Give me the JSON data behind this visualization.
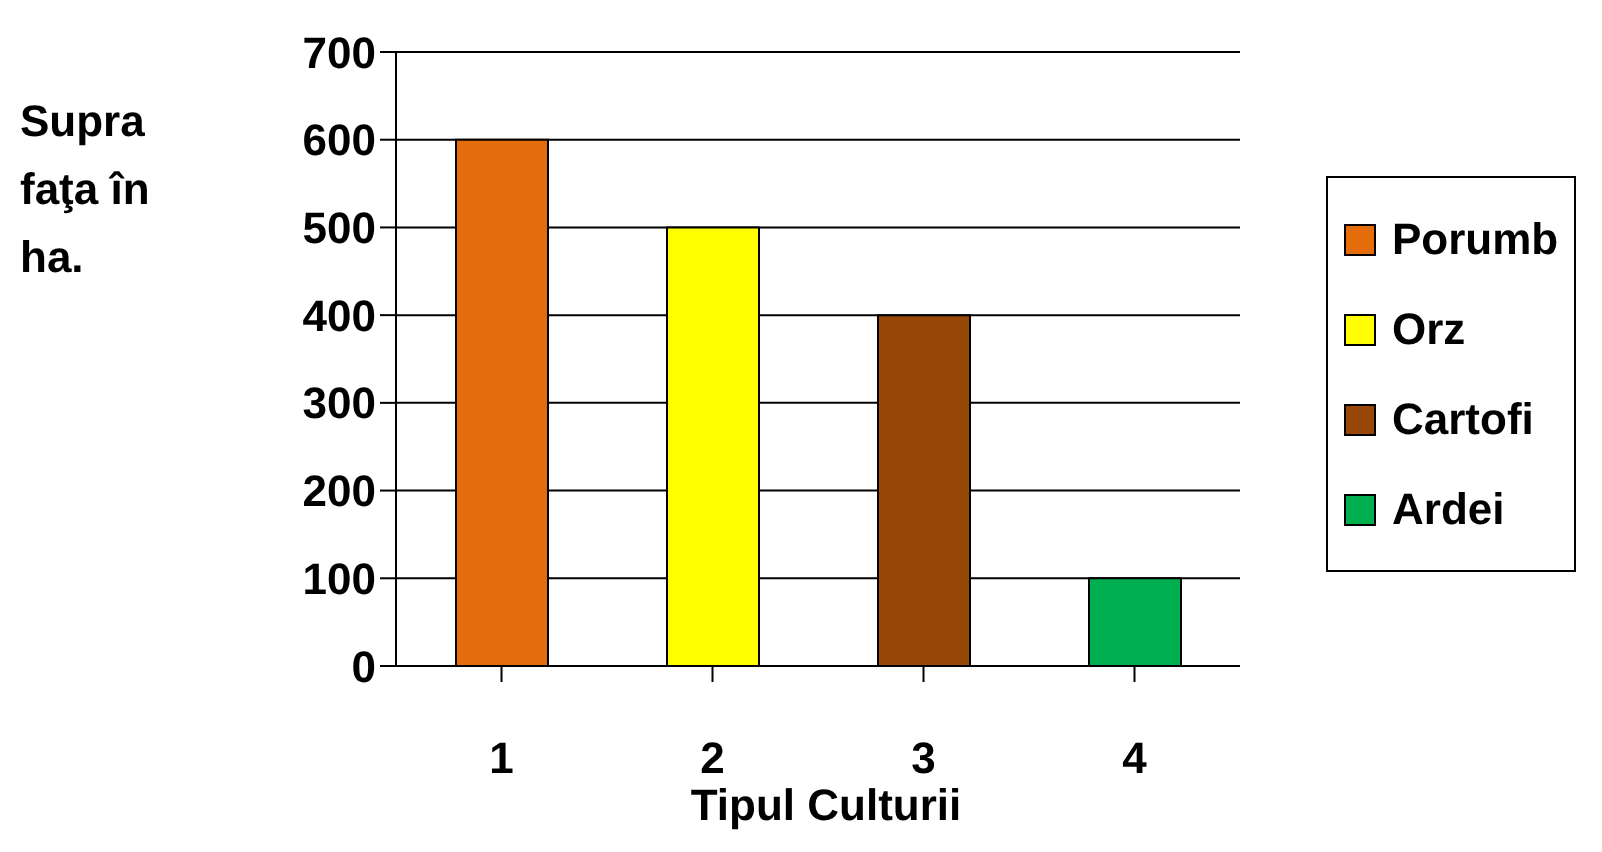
{
  "chart_data": {
    "type": "bar",
    "stacked": true,
    "xlabel": "Tipul Culturii",
    "ylabel": "Supra faţa în ha.",
    "categories": [
      "1",
      "2",
      "3",
      "4"
    ],
    "series": [
      {
        "name": "Porumb",
        "color": "#e46c0a",
        "values": [
          600,
          null,
          null,
          null
        ]
      },
      {
        "name": "Orz",
        "color": "#ffff00",
        "values": [
          null,
          500,
          null,
          null
        ]
      },
      {
        "name": "Cartofi",
        "color": "#974806",
        "values": [
          null,
          null,
          400,
          null
        ]
      },
      {
        "name": "Ardei",
        "color": "#00b050",
        "values": [
          null,
          null,
          null,
          100
        ]
      }
    ],
    "ylim": [
      0,
      700
    ],
    "yticks": [
      0,
      100,
      200,
      300,
      400,
      500,
      600,
      700
    ],
    "grid": "y",
    "legend": "right"
  }
}
